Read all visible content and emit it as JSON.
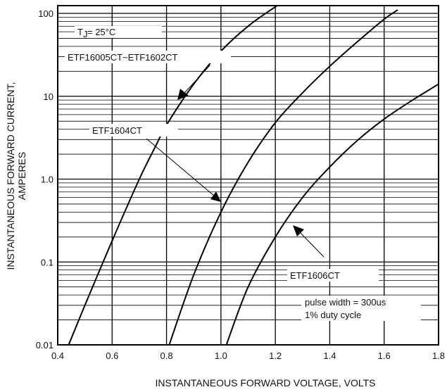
{
  "chart_data": {
    "type": "line",
    "xlabel": "INSTANTANEOUS FORWARD VOLTAGE, VOLTS",
    "ylabel_line1": "INSTANTANEOUS FORWARD CURRENT,",
    "ylabel_line2": "AMPERES",
    "xlim": [
      0.4,
      1.8
    ],
    "ylim": [
      0.01,
      150
    ],
    "yscale": "log",
    "grid": true,
    "x_ticks": [
      0.4,
      0.6,
      0.8,
      1.0,
      1.2,
      1.4,
      1.6,
      1.8
    ],
    "x_tick_labels": [
      "0.4",
      "0.6",
      "0.8",
      "1.0",
      "1.2",
      "1.4",
      "1.6",
      "1.8"
    ],
    "y_ticks": [
      0.01,
      0.1,
      1.0,
      10,
      100
    ],
    "y_tick_labels": [
      "0.01",
      "0.1",
      "1.0",
      "10",
      "100"
    ],
    "series": [
      {
        "name": "ETF16005CT~ETF1602CT",
        "x": [
          0.44,
          0.5,
          0.6,
          0.7,
          0.76,
          0.8,
          0.9,
          1.0,
          1.1,
          1.2,
          1.25
        ],
        "y": [
          0.01,
          0.03,
          0.18,
          1.0,
          2.5,
          4.5,
          14,
          35,
          70,
          120,
          150
        ]
      },
      {
        "name": "ETF1604CT",
        "x": [
          0.81,
          0.9,
          1.0,
          1.1,
          1.2,
          1.3,
          1.4,
          1.5,
          1.6,
          1.65
        ],
        "y": [
          0.01,
          0.07,
          0.4,
          1.6,
          4.8,
          11,
          23,
          45,
          85,
          110
        ]
      },
      {
        "name": "ETF1606CT",
        "x": [
          1.02,
          1.1,
          1.2,
          1.3,
          1.4,
          1.5,
          1.6,
          1.7,
          1.8
        ],
        "y": [
          0.01,
          0.05,
          0.2,
          0.6,
          1.4,
          2.9,
          5.3,
          8.8,
          14
        ]
      }
    ],
    "annotations": {
      "temperature": "T",
      "temperature_sub": "J",
      "temperature_rest": " = 25°C",
      "label_a": "ETF16005CT~ETF1602CT",
      "label_b": "ETF1604CT",
      "label_c": "ETF1606CT",
      "pulse_line1": "pulse width = 300us",
      "pulse_line2": "1% duty cycle"
    }
  }
}
